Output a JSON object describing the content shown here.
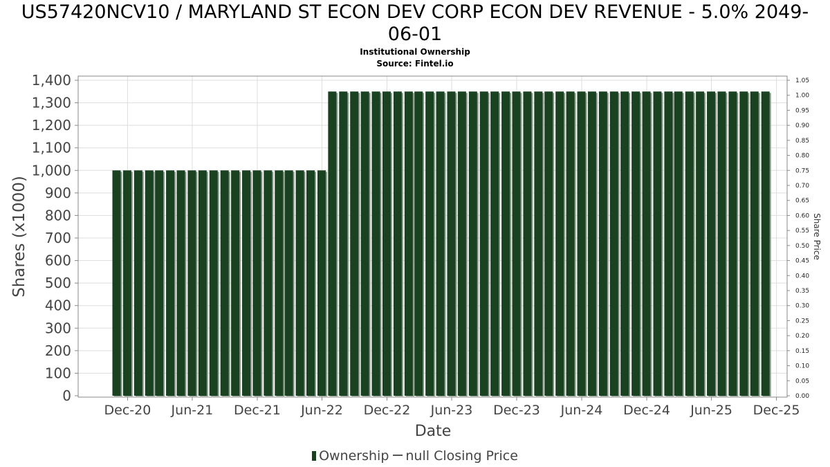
{
  "title_line1": "US57420NCV10 / MARYLAND ST ECON DEV CORP ECON DEV REVENUE - 5.0% 2049-",
  "title_line2": "06-01",
  "subtitle1": "Institutional Ownership",
  "subtitle2": "Source: Fintel.io",
  "legend": {
    "ownership": "Ownership",
    "price": "null Closing Price"
  },
  "colors": {
    "bar": "#1a4221",
    "bar_shadow": "#8a9a8a",
    "grid": "#dddddd",
    "axis": "#888888"
  },
  "chart_data": {
    "type": "bar",
    "xlabel": "Date",
    "ylabel": "Shares (x1000)",
    "y2label": "Share Price",
    "ylim": [
      0,
      1400
    ],
    "y2lim": [
      0,
      1.05
    ],
    "xlim": [
      "2020-07-15",
      "2025-12-31"
    ],
    "yticks": [
      "0",
      "100",
      "200",
      "300",
      "400",
      "500",
      "600",
      "700",
      "800",
      "900",
      "1,000",
      "1,100",
      "1,200",
      "1,300",
      "1,400"
    ],
    "y2ticks": [
      "0.00",
      "0.05",
      "0.10",
      "0.15",
      "0.20",
      "0.25",
      "0.30",
      "0.35",
      "0.40",
      "0.45",
      "0.50",
      "0.55",
      "0.60",
      "0.65",
      "0.70",
      "0.75",
      "0.80",
      "0.85",
      "0.90",
      "0.95",
      "1.00",
      "1.05"
    ],
    "xticks": [
      {
        "label": "Dec-20",
        "date": "2020-12-01"
      },
      {
        "label": "Jun-21",
        "date": "2021-06-01"
      },
      {
        "label": "Dec-21",
        "date": "2021-12-01"
      },
      {
        "label": "Jun-22",
        "date": "2022-06-01"
      },
      {
        "label": "Dec-22",
        "date": "2022-12-01"
      },
      {
        "label": "Jun-23",
        "date": "2023-06-01"
      },
      {
        "label": "Dec-23",
        "date": "2023-12-01"
      },
      {
        "label": "Jun-24",
        "date": "2024-06-01"
      },
      {
        "label": "Dec-24",
        "date": "2024-12-01"
      },
      {
        "label": "Jun-25",
        "date": "2025-06-01"
      },
      {
        "label": "Dec-25",
        "date": "2025-12-01"
      }
    ],
    "grid": true,
    "legend_position": "bottom",
    "series": [
      {
        "name": "Ownership",
        "x": [
          "2020-10-31",
          "2020-11-30",
          "2020-12-31",
          "2021-01-31",
          "2021-02-28",
          "2021-03-31",
          "2021-04-30",
          "2021-05-31",
          "2021-06-30",
          "2021-07-31",
          "2021-08-31",
          "2021-09-30",
          "2021-10-31",
          "2021-11-30",
          "2021-12-31",
          "2022-01-31",
          "2022-02-28",
          "2022-03-31",
          "2022-04-30",
          "2022-05-31",
          "2022-06-30",
          "2022-07-31",
          "2022-08-31",
          "2022-09-30",
          "2022-10-31",
          "2022-11-30",
          "2022-12-31",
          "2023-01-31",
          "2023-02-28",
          "2023-03-31",
          "2023-04-30",
          "2023-05-31",
          "2023-06-30",
          "2023-07-31",
          "2023-08-31",
          "2023-09-30",
          "2023-10-31",
          "2023-11-30",
          "2023-12-31",
          "2024-01-31",
          "2024-02-29",
          "2024-03-31",
          "2024-04-30",
          "2024-05-31",
          "2024-06-30",
          "2024-07-31",
          "2024-08-31",
          "2024-09-30",
          "2024-10-31",
          "2024-11-30",
          "2024-12-31",
          "2025-01-31",
          "2025-02-28",
          "2025-03-31",
          "2025-04-30",
          "2025-05-31",
          "2025-06-30",
          "2025-07-31",
          "2025-08-31",
          "2025-09-30",
          "2025-10-31"
        ],
        "values": [
          1000,
          1000,
          1000,
          1000,
          1000,
          1000,
          1000,
          1000,
          1000,
          1000,
          1000,
          1000,
          1000,
          1000,
          1000,
          1000,
          1000,
          1000,
          1000,
          1000,
          1350,
          1350,
          1350,
          1350,
          1350,
          1350,
          1350,
          1350,
          1350,
          1350,
          1350,
          1350,
          1350,
          1350,
          1350,
          1350,
          1350,
          1350,
          1350,
          1350,
          1350,
          1350,
          1350,
          1350,
          1350,
          1350,
          1350,
          1350,
          1350,
          1350,
          1350,
          1350,
          1350,
          1350,
          1350,
          1350,
          1350,
          1350,
          1350,
          1350,
          1350
        ]
      }
    ]
  }
}
